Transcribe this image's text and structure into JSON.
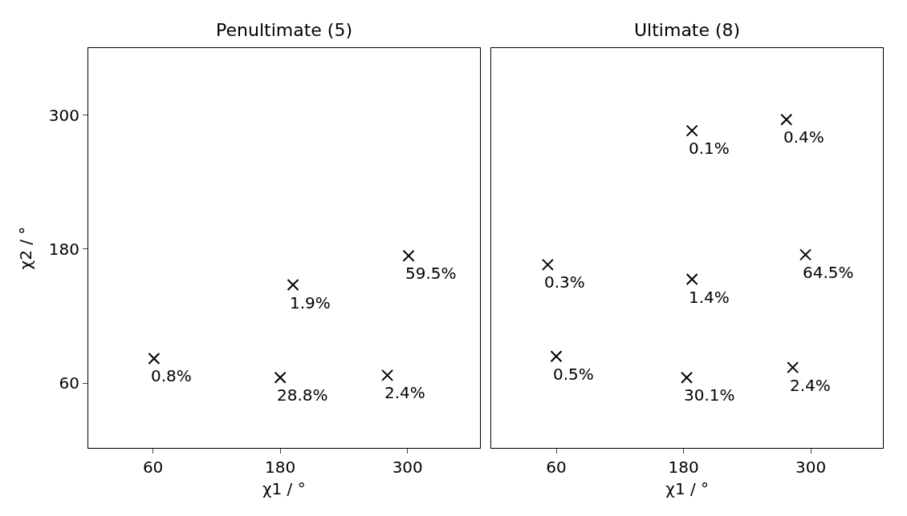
{
  "chart_data": [
    {
      "type": "scatter",
      "title": "Penultimate (5)",
      "xlabel": "χ1 / °",
      "ylabel": "χ2 / °",
      "xlim": [
        -1,
        368
      ],
      "ylim": [
        2,
        360
      ],
      "xticks": [
        60,
        180,
        300
      ],
      "yticks": [
        60,
        180,
        300
      ],
      "marker": "cross",
      "series": [
        {
          "color": "#000000",
          "x": [
            61,
            180,
            192,
            281,
            301
          ],
          "values": [
            82,
            65,
            148,
            67,
            174
          ]
        }
      ],
      "annotations": [
        {
          "text": "0.8%",
          "x": 61,
          "y": 82
        },
        {
          "text": "28.8%",
          "x": 180,
          "y": 65
        },
        {
          "text": "1.9%",
          "x": 192,
          "y": 148
        },
        {
          "text": "2.4%",
          "x": 281,
          "y": 67
        },
        {
          "text": "59.5%",
          "x": 301,
          "y": 174
        }
      ]
    },
    {
      "type": "scatter",
      "title": "Ultimate (8)",
      "xlabel": "χ1 / °",
      "xlim": [
        -1,
        368
      ],
      "ylim": [
        2,
        360
      ],
      "xticks": [
        60,
        180,
        300
      ],
      "yticks": [
        60,
        180,
        300
      ],
      "tick_labels": "x",
      "marker": "cross",
      "series": [
        {
          "color": "#000000",
          "x": [
            60,
            52,
            188,
            183,
            188,
            277,
            295,
            283
          ],
          "values": [
            84,
            166,
            153,
            65,
            286,
            296,
            175,
            74
          ]
        }
      ],
      "annotations": [
        {
          "text": "0.5%",
          "x": 60,
          "y": 84
        },
        {
          "text": "0.3%",
          "x": 52,
          "y": 166
        },
        {
          "text": "1.4%",
          "x": 188,
          "y": 153
        },
        {
          "text": "30.1%",
          "x": 183,
          "y": 65
        },
        {
          "text": "0.1%",
          "x": 188,
          "y": 286
        },
        {
          "text": "0.4%",
          "x": 277,
          "y": 296
        },
        {
          "text": "64.5%",
          "x": 295,
          "y": 175
        },
        {
          "text": "2.4%",
          "x": 283,
          "y": 74
        }
      ]
    }
  ]
}
